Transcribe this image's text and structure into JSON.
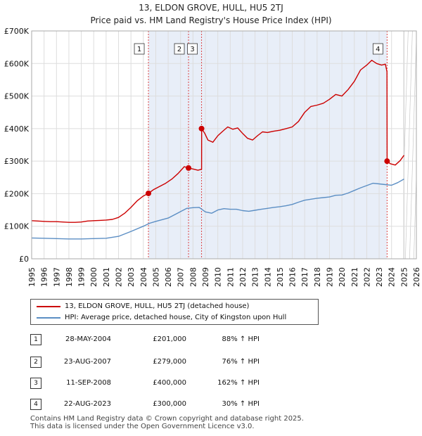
{
  "title": "13, ELDON GROVE, HULL, HU5 2TJ",
  "subtitle": "Price paid vs. HM Land Registry's House Price Index (HPI)",
  "chart_data": {
    "type": "line",
    "x_range": [
      1995,
      2026
    ],
    "y_range": [
      0,
      700000
    ],
    "x_ticks": [
      "1995",
      "1996",
      "1997",
      "1998",
      "1999",
      "2000",
      "2001",
      "2002",
      "2003",
      "2004",
      "2005",
      "2006",
      "2007",
      "2008",
      "2009",
      "2010",
      "2011",
      "2012",
      "2013",
      "2014",
      "2015",
      "2016",
      "2017",
      "2018",
      "2019",
      "2020",
      "2021",
      "2022",
      "2023",
      "2024",
      "2025",
      "2026"
    ],
    "y_ticks": [
      {
        "value": 0,
        "label": "£0"
      },
      {
        "value": 100000,
        "label": "£100K"
      },
      {
        "value": 200000,
        "label": "£200K"
      },
      {
        "value": 300000,
        "label": "£300K"
      },
      {
        "value": 400000,
        "label": "£400K"
      },
      {
        "value": 500000,
        "label": "£500K"
      },
      {
        "value": 600000,
        "label": "£600K"
      },
      {
        "value": 700000,
        "label": "£700K"
      }
    ],
    "grid": true,
    "ownership_span": [
      2004.41,
      2023.64
    ],
    "future_from": 2025.0,
    "series": [
      {
        "name": "13, ELDON GROVE, HULL, HU5 2TJ (detached house)",
        "color": "#cc0000",
        "points": [
          [
            1995.0,
            117000
          ],
          [
            1995.5,
            116000
          ],
          [
            1996.0,
            115000
          ],
          [
            1996.5,
            114000
          ],
          [
            1997.0,
            114000
          ],
          [
            1997.5,
            113000
          ],
          [
            1998.0,
            112000
          ],
          [
            1998.5,
            112000
          ],
          [
            1999.0,
            113000
          ],
          [
            1999.5,
            116000
          ],
          [
            2000.0,
            117000
          ],
          [
            2000.5,
            118000
          ],
          [
            2001.0,
            119000
          ],
          [
            2001.5,
            121000
          ],
          [
            2002.0,
            127000
          ],
          [
            2002.5,
            140000
          ],
          [
            2003.0,
            158000
          ],
          [
            2003.5,
            178000
          ],
          [
            2004.0,
            193000
          ],
          [
            2004.41,
            201000
          ],
          [
            2004.8,
            212000
          ],
          [
            2005.3,
            222000
          ],
          [
            2005.8,
            232000
          ],
          [
            2006.3,
            245000
          ],
          [
            2006.8,
            262000
          ],
          [
            2007.3,
            283000
          ],
          [
            2007.64,
            279000
          ],
          [
            2008.0,
            276000
          ],
          [
            2008.4,
            272000
          ],
          [
            2008.69,
            275000
          ],
          [
            2008.7,
            400000
          ],
          [
            2008.95,
            385000
          ],
          [
            2009.2,
            365000
          ],
          [
            2009.6,
            358000
          ],
          [
            2010.0,
            378000
          ],
          [
            2010.4,
            392000
          ],
          [
            2010.8,
            405000
          ],
          [
            2011.2,
            398000
          ],
          [
            2011.6,
            402000
          ],
          [
            2012.0,
            385000
          ],
          [
            2012.4,
            370000
          ],
          [
            2012.8,
            365000
          ],
          [
            2013.2,
            378000
          ],
          [
            2013.6,
            390000
          ],
          [
            2014.0,
            388000
          ],
          [
            2014.5,
            392000
          ],
          [
            2015.0,
            395000
          ],
          [
            2015.5,
            400000
          ],
          [
            2016.0,
            405000
          ],
          [
            2016.5,
            422000
          ],
          [
            2017.0,
            450000
          ],
          [
            2017.5,
            468000
          ],
          [
            2018.0,
            472000
          ],
          [
            2018.5,
            478000
          ],
          [
            2019.0,
            490000
          ],
          [
            2019.5,
            505000
          ],
          [
            2020.0,
            500000
          ],
          [
            2020.5,
            520000
          ],
          [
            2021.0,
            545000
          ],
          [
            2021.5,
            580000
          ],
          [
            2022.0,
            595000
          ],
          [
            2022.4,
            610000
          ],
          [
            2022.8,
            600000
          ],
          [
            2023.2,
            595000
          ],
          [
            2023.5,
            598000
          ],
          [
            2023.63,
            575000
          ],
          [
            2023.64,
            300000
          ],
          [
            2023.9,
            292000
          ],
          [
            2024.3,
            288000
          ],
          [
            2024.7,
            302000
          ],
          [
            2025.0,
            318000
          ]
        ]
      },
      {
        "name": "HPI: Average price, detached house, City of Kingston upon Hull",
        "color": "#5b8ec4",
        "points": [
          [
            1995.0,
            64000
          ],
          [
            1996.0,
            63000
          ],
          [
            1997.0,
            62000
          ],
          [
            1998.0,
            61000
          ],
          [
            1999.0,
            61000
          ],
          [
            2000.0,
            62000
          ],
          [
            2001.0,
            63000
          ],
          [
            2002.0,
            69000
          ],
          [
            2003.0,
            84000
          ],
          [
            2004.0,
            100000
          ],
          [
            2004.5,
            109000
          ],
          [
            2005.0,
            115000
          ],
          [
            2006.0,
            125000
          ],
          [
            2007.0,
            145000
          ],
          [
            2007.5,
            155000
          ],
          [
            2008.0,
            157000
          ],
          [
            2008.5,
            158000
          ],
          [
            2009.0,
            144000
          ],
          [
            2009.5,
            140000
          ],
          [
            2010.0,
            150000
          ],
          [
            2010.5,
            154000
          ],
          [
            2011.0,
            152000
          ],
          [
            2011.5,
            152000
          ],
          [
            2012.0,
            148000
          ],
          [
            2012.5,
            146000
          ],
          [
            2013.0,
            149000
          ],
          [
            2013.5,
            152000
          ],
          [
            2014.0,
            155000
          ],
          [
            2014.5,
            158000
          ],
          [
            2015.0,
            160000
          ],
          [
            2015.5,
            163000
          ],
          [
            2016.0,
            167000
          ],
          [
            2016.5,
            174000
          ],
          [
            2017.0,
            180000
          ],
          [
            2017.5,
            183000
          ],
          [
            2018.0,
            186000
          ],
          [
            2018.5,
            188000
          ],
          [
            2019.0,
            190000
          ],
          [
            2019.5,
            195000
          ],
          [
            2020.0,
            196000
          ],
          [
            2020.5,
            202000
          ],
          [
            2021.0,
            210000
          ],
          [
            2021.5,
            218000
          ],
          [
            2022.0,
            225000
          ],
          [
            2022.5,
            232000
          ],
          [
            2023.0,
            230000
          ],
          [
            2023.5,
            228000
          ],
          [
            2024.0,
            226000
          ],
          [
            2024.5,
            234000
          ],
          [
            2025.0,
            245000
          ]
        ]
      }
    ],
    "sales": [
      {
        "id": "1",
        "year": 2004.41,
        "price": 201000
      },
      {
        "id": "2",
        "year": 2007.64,
        "price": 279000
      },
      {
        "id": "3",
        "year": 2008.69,
        "price": 400000
      },
      {
        "id": "4",
        "year": 2023.64,
        "price": 300000
      }
    ]
  },
  "legend": [
    {
      "label": "13, ELDON GROVE, HULL, HU5 2TJ (detached house)",
      "color": "#cc0000"
    },
    {
      "label": "HPI: Average price, detached house, City of Kingston upon Hull",
      "color": "#5b8ec4"
    }
  ],
  "transactions": [
    {
      "num": "1",
      "date": "28-MAY-2004",
      "price": "£201,000",
      "hpi": "88% ↑ HPI"
    },
    {
      "num": "2",
      "date": "23-AUG-2007",
      "price": "£279,000",
      "hpi": "76% ↑ HPI"
    },
    {
      "num": "3",
      "date": "11-SEP-2008",
      "price": "£400,000",
      "hpi": "162% ↑ HPI"
    },
    {
      "num": "4",
      "date": "22-AUG-2023",
      "price": "£300,000",
      "hpi": "30% ↑ HPI"
    }
  ],
  "footer": {
    "line1": "Contains HM Land Registry data © Crown copyright and database right 2025.",
    "line2": "This data is licensed under the Open Government Licence v3.0."
  }
}
